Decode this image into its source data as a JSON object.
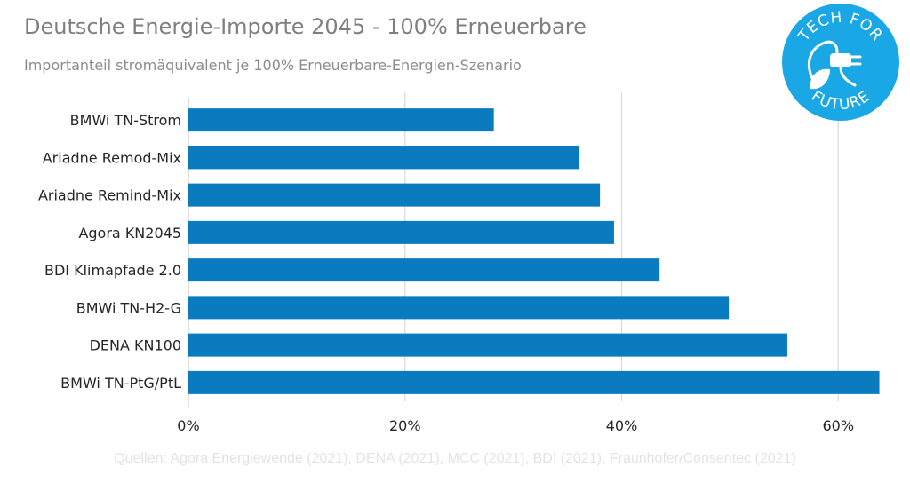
{
  "title": "Deutsche Energie-Importe 2045 - 100% Erneuerbare",
  "subtitle": "Importanteil stromäquivalent je 100% Erneuerbare-Energien-Szenario",
  "source": "Quellen: Agora Energiewende (2021), DENA (2021), MCC (2021), BDI (2021), Fraunhofer/Consentec (2021)",
  "logo": {
    "top_text": "TECH FOR",
    "bottom_text": "FUTURE"
  },
  "colors": {
    "bar": "#0a7bbf",
    "grid": "#d9d9d9",
    "logo_bg": "#1aa7e6"
  },
  "chart_data": {
    "type": "bar",
    "orientation": "horizontal",
    "title": "Deutsche Energie-Importe 2045 - 100% Erneuerbare",
    "subtitle": "Importanteil stromäquivalent je 100% Erneuerbare-Energien-Szenario",
    "categories": [
      "BMWi TN-Strom",
      "Ariadne Remod-Mix",
      "Ariadne Remind-Mix",
      "Agora KN2045",
      "BDI Klimapfade 2.0",
      "BMWi TN-H2-G",
      "DENA KN100",
      "BMWi TN-PtG/PtL"
    ],
    "values": [
      28.2,
      36.1,
      38.0,
      39.3,
      43.5,
      49.9,
      55.3,
      63.8
    ],
    "xlim": [
      0,
      64
    ],
    "xticks": [
      0,
      20,
      40,
      60
    ],
    "xtick_labels": [
      "0%",
      "20%",
      "40%",
      "60%"
    ],
    "grid": true,
    "xlabel": "",
    "ylabel": ""
  }
}
